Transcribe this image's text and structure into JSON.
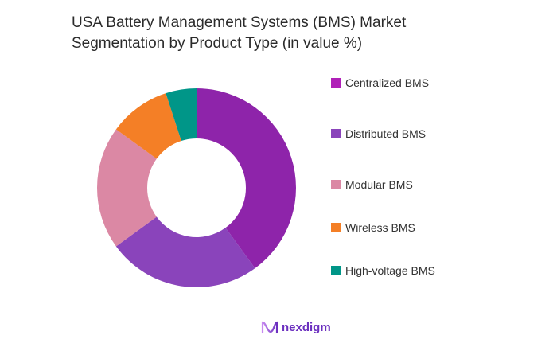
{
  "title": {
    "line1": "USA Battery Management Systems (BMS) Market",
    "line2": "Segmentation by Product Type (in value %)"
  },
  "chart_data": {
    "type": "pie",
    "subtype": "donut",
    "title": "USA Battery Management Systems (BMS) Market Segmentation by Product Type (in value %)",
    "categories": [
      "Centralized BMS",
      "Distributed BMS",
      "Modular BMS",
      "Wireless BMS",
      "High-voltage BMS"
    ],
    "values": [
      40,
      25,
      20,
      10,
      5
    ],
    "colors": [
      "#8e24aa",
      "#8a44bb",
      "#db88a4",
      "#f47f26",
      "#009688"
    ],
    "legend_position": "right",
    "start_angle_deg": 0,
    "direction": "clockwise"
  },
  "legend": {
    "items": [
      {
        "label": "Centralized BMS",
        "color": "#b020b8"
      },
      {
        "label": "Distributed BMS",
        "color": "#8a44bb"
      },
      {
        "label": "Modular BMS",
        "color": "#db88a4"
      },
      {
        "label": "Wireless BMS",
        "color": "#f47f26"
      },
      {
        "label": "High-voltage BMS",
        "color": "#009688"
      }
    ]
  },
  "branding": {
    "logo_text": "nexdigm",
    "logo_icon": "nexdigm-wave-icon"
  }
}
